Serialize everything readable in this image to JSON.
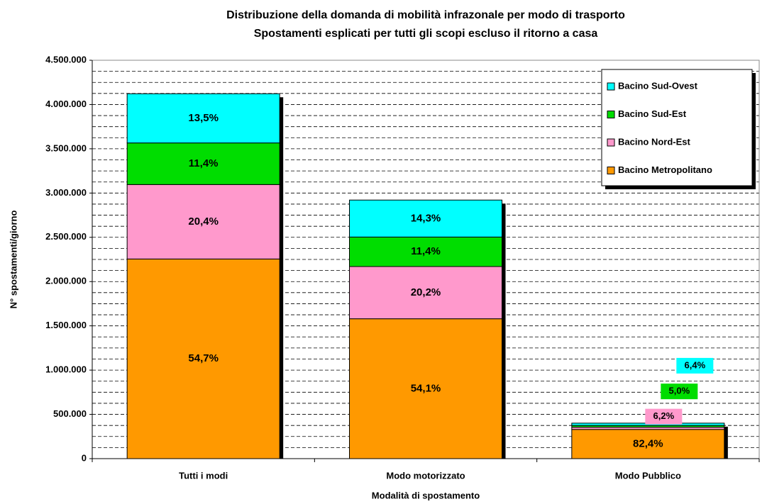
{
  "chart_data": {
    "type": "stacked_bar",
    "title": "Distribuzione della domanda di mobilità infrazonale per modo di trasporto",
    "subtitle": "Spostamenti esplicati per tutti gli scopi escluso il ritorno a casa",
    "x_label": "Modalità di spostamento",
    "y_label": "N° spostamenti/giorno",
    "categories": [
      "Tutti i modi",
      "Modo motorizzato",
      "Modo Pubblico"
    ],
    "series": [
      {
        "name": "Bacino Metropolitano",
        "color": "#ff9900",
        "values": [
          2255000,
          1580000,
          330000
        ],
        "labels": [
          "54,7%",
          "54,1%",
          "82,4%"
        ]
      },
      {
        "name": "Bacino Nord-Est",
        "color": "#ff99cc",
        "values": [
          841000,
          590000,
          25000
        ],
        "labels": [
          "20,4%",
          "20,2%",
          "6,2%"
        ]
      },
      {
        "name": "Bacino Sud-Est",
        "color": "#00dd00",
        "values": [
          470000,
          333000,
          20000
        ],
        "labels": [
          "11,4%",
          "11,4%",
          "5,0%"
        ]
      },
      {
        "name": "Bacino Sud-Ovest",
        "color": "#00ffff",
        "values": [
          556000,
          418000,
          26000
        ],
        "labels": [
          "13,5%",
          "14,3%",
          "6,4%"
        ]
      }
    ],
    "ylim": [
      0,
      4500000
    ],
    "yticks": [
      0,
      {
        "value": 500000,
        "label": "500.000"
      },
      {
        "value": 1000000,
        "label": "1.000.000"
      },
      {
        "value": 1500000,
        "label": "1.500.000"
      },
      {
        "value": 2000000,
        "label": "2.000.000"
      },
      {
        "value": 2500000,
        "label": "2.500.000"
      },
      {
        "value": 3000000,
        "label": "3.000.000"
      },
      {
        "value": 3500000,
        "label": "3.500.000"
      },
      {
        "value": 4000000,
        "label": "4.000.000"
      },
      {
        "value": 4500000,
        "label": "4.500.000"
      }
    ],
    "grid": true,
    "legend": "top-right"
  }
}
